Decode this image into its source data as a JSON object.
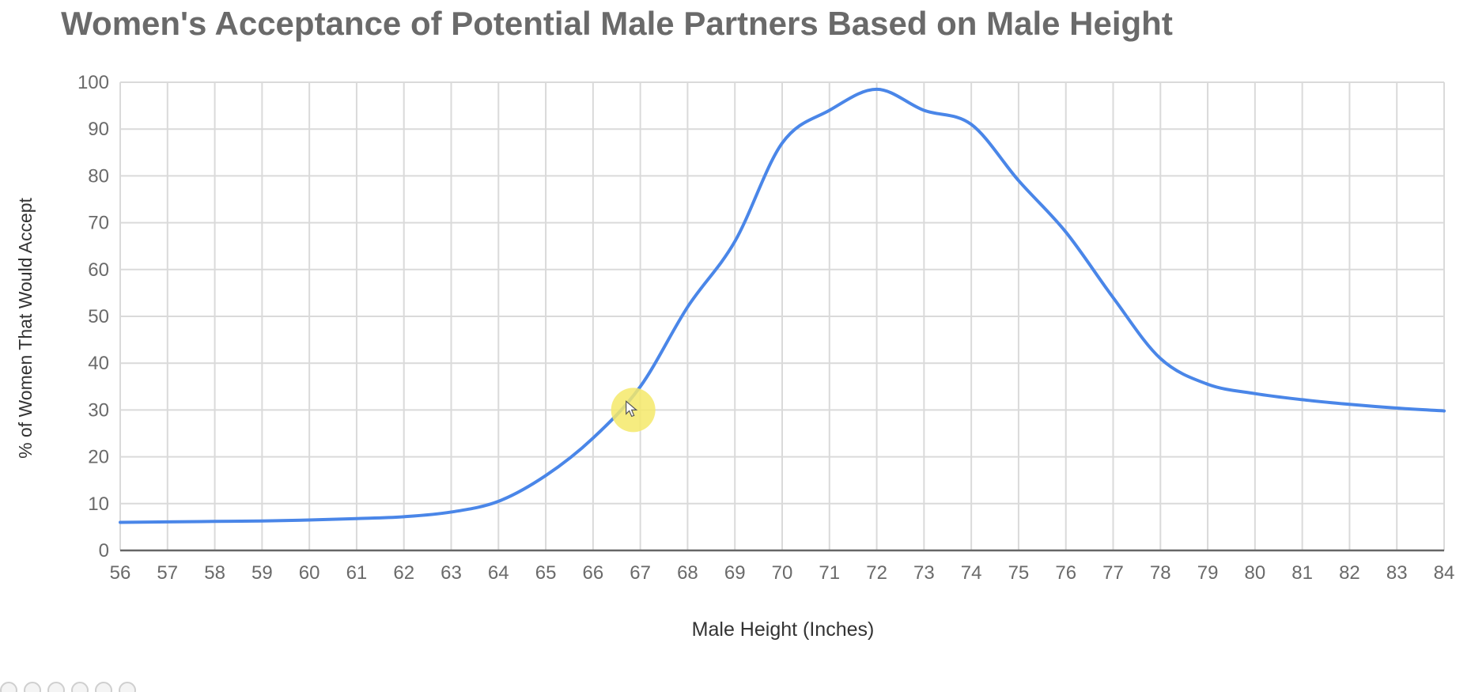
{
  "chart_data": {
    "type": "line",
    "title": "Women's Acceptance of Potential Male Partners Based on Male Height",
    "xlabel": "Male Height (Inches)",
    "ylabel": "% of Women That Would Accept",
    "xlim": [
      56,
      84
    ],
    "ylim": [
      0,
      100
    ],
    "x_ticks": [
      56,
      57,
      58,
      59,
      60,
      61,
      62,
      63,
      64,
      65,
      66,
      67,
      68,
      69,
      70,
      71,
      72,
      73,
      74,
      75,
      76,
      77,
      78,
      79,
      80,
      81,
      82,
      83,
      84
    ],
    "y_ticks": [
      0,
      10,
      20,
      30,
      40,
      50,
      60,
      70,
      80,
      90,
      100
    ],
    "grid": true,
    "legend": "none",
    "series": [
      {
        "color": "#4a86e8",
        "x": [
          56,
          57,
          58,
          59,
          60,
          61,
          62,
          63,
          64,
          65,
          66,
          67,
          68,
          69,
          70,
          71,
          72,
          73,
          74,
          75,
          76,
          77,
          78,
          79,
          80,
          81,
          82,
          83,
          84
        ],
        "y": [
          6,
          6.1,
          6.2,
          6.3,
          6.5,
          6.8,
          7.2,
          8.2,
          10.5,
          16,
          24,
          35,
          52,
          66,
          87,
          94,
          98.5,
          94,
          91,
          79,
          68,
          54,
          41,
          35.5,
          33.5,
          32.2,
          31.2,
          30.4,
          29.8
        ]
      }
    ],
    "annotations": {
      "cursor_highlight": {
        "x": 66.85,
        "y": 30,
        "color": "#f5e96a"
      }
    },
    "colors": {
      "title": "#6a6a6a",
      "axis_text": "#6a6a6a",
      "axis_label": "#333333",
      "grid": "#dadada",
      "baseline": "#666666",
      "line": "#4a86e8"
    }
  }
}
